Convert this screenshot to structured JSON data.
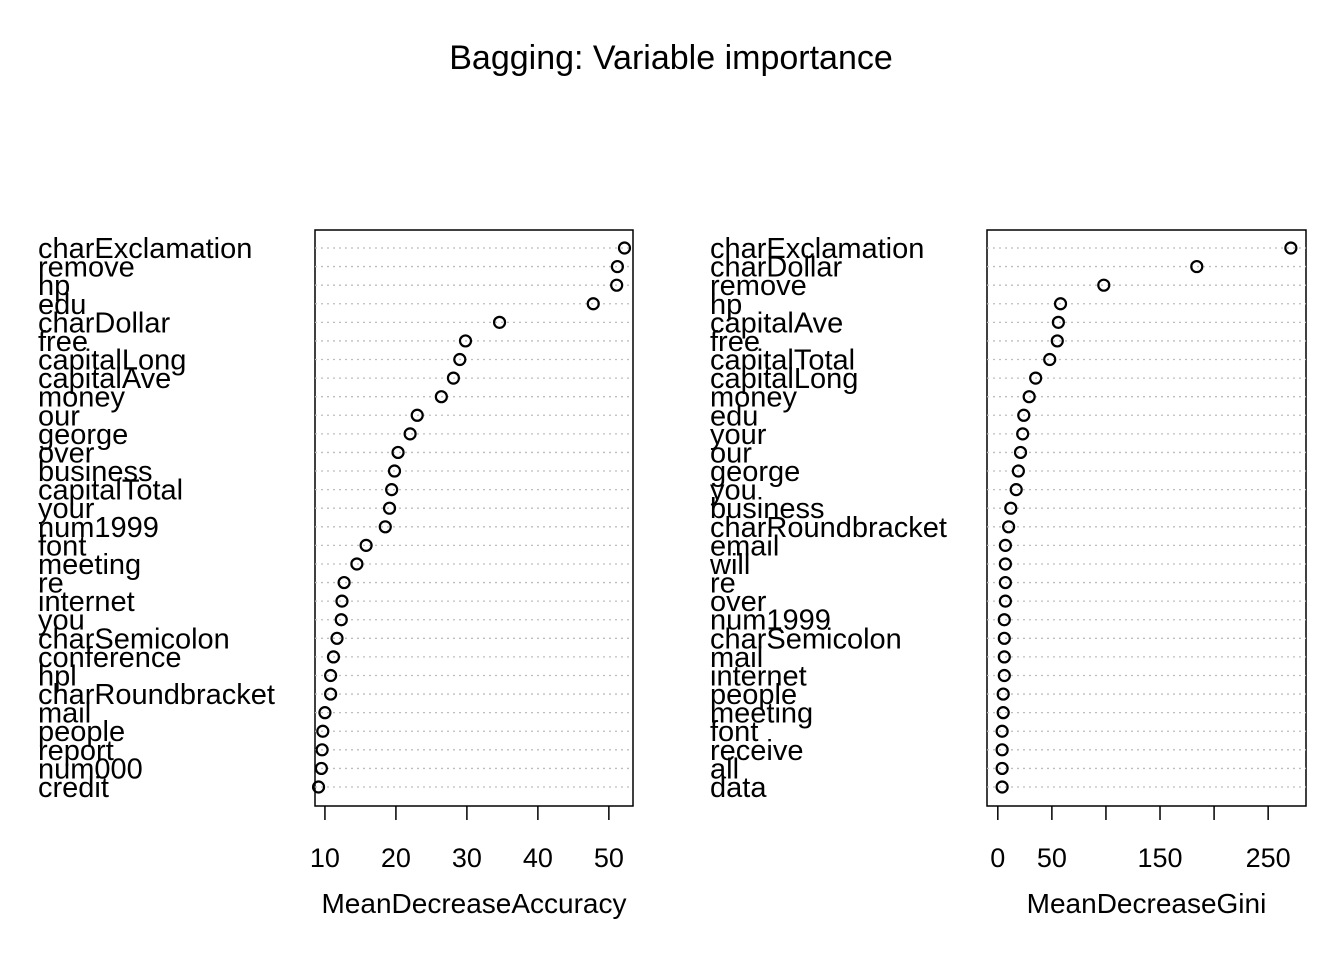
{
  "chart_data": {
    "title": "Bagging: Variable importance",
    "panels": [
      {
        "type": "dotchart",
        "xlabel": "MeanDecreaseAccuracy",
        "xlim": [
          8.6,
          53.4
        ],
        "ticks": [
          10,
          20,
          30,
          40,
          50
        ],
        "tick_labels": [
          "10",
          "20",
          "30",
          "40",
          "50"
        ],
        "grid": "dotted horizontal lines",
        "categories": [
          "charExclamation",
          "remove",
          "hp",
          "edu",
          "charDollar",
          "free",
          "capitalLong",
          "capitalAve",
          "money",
          "our",
          "george",
          "over",
          "business",
          "capitalTotal",
          "your",
          "num1999",
          "font",
          "meeting",
          "re",
          "internet",
          "you",
          "charSemicolon",
          "conference",
          "hpl",
          "charRoundbracket",
          "mail",
          "people",
          "report",
          "num000",
          "credit"
        ],
        "values": [
          52.2,
          51.2,
          51.1,
          47.8,
          34.6,
          29.8,
          29.0,
          28.1,
          26.4,
          23.0,
          22.0,
          20.3,
          19.8,
          19.4,
          19.1,
          18.5,
          15.8,
          14.5,
          12.7,
          12.4,
          12.3,
          11.7,
          11.2,
          10.8,
          10.8,
          10.0,
          9.7,
          9.6,
          9.5,
          9.1
        ]
      },
      {
        "type": "dotchart",
        "xlabel": "MeanDecreaseGini",
        "xlim": [
          -10,
          285
        ],
        "ticks": [
          0,
          50,
          100,
          150,
          200,
          250
        ],
        "tick_labels": [
          "0",
          "50",
          "",
          "150",
          "",
          "250"
        ],
        "grid": "dotted horizontal lines",
        "categories": [
          "charExclamation",
          "charDollar",
          "remove",
          "hp",
          "capitalAve",
          "free",
          "capitalTotal",
          "capitalLong",
          "money",
          "edu",
          "your",
          "our",
          "george",
          "you",
          "business",
          "charRoundbracket",
          "email",
          "will",
          "re",
          "over",
          "num1999",
          "charSemicolon",
          "mail",
          "internet",
          "people",
          "meeting",
          "font",
          "receive",
          "all",
          "data"
        ],
        "values": [
          271,
          184,
          98,
          58,
          56,
          55,
          48,
          35,
          29,
          24,
          23,
          21,
          19,
          17,
          12,
          10,
          7,
          7,
          7,
          7,
          6,
          6,
          6,
          6,
          5,
          5,
          4,
          4,
          4,
          4
        ]
      }
    ]
  }
}
